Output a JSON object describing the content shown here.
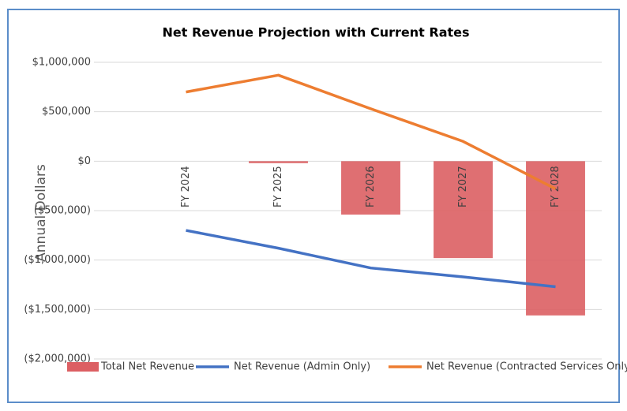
{
  "chart_data": {
    "type": "combo",
    "title": "Net Revenue Projection with Current Rates",
    "ylabel": "Annual Dollars",
    "categories": [
      "FY 2024",
      "FY 2025",
      "FY 2026",
      "FY 2027",
      "FY 2028"
    ],
    "series": [
      {
        "name": "Total Net Revenue",
        "type": "bar",
        "color": "#dc5f63",
        "values": [
          0,
          -20000,
          -540000,
          -980000,
          -1560000
        ]
      },
      {
        "name": "Net Revenue (Admin Only)",
        "type": "line",
        "color": "#4472c4",
        "values": [
          -700000,
          -880000,
          -1080000,
          -1170000,
          -1270000
        ]
      },
      {
        "name": "Net Revenue (Contracted Services Only)",
        "type": "line",
        "color": "#ed7d31",
        "values": [
          700000,
          870000,
          530000,
          200000,
          -280000
        ]
      }
    ],
    "ylim": [
      -2000000,
      1000000
    ],
    "yticks": [
      {
        "value": -2000000,
        "label": "($2,000,000)"
      },
      {
        "value": -1500000,
        "label": "($1,500,000)"
      },
      {
        "value": -1000000,
        "label": "($1,000,000)"
      },
      {
        "value": -500000,
        "label": "($500,000)"
      },
      {
        "value": 0,
        "label": "$0"
      },
      {
        "value": 500000,
        "label": "$500,000"
      },
      {
        "value": 1000000,
        "label": "$1,000,000"
      }
    ],
    "grid": true,
    "legend": "bottom"
  }
}
